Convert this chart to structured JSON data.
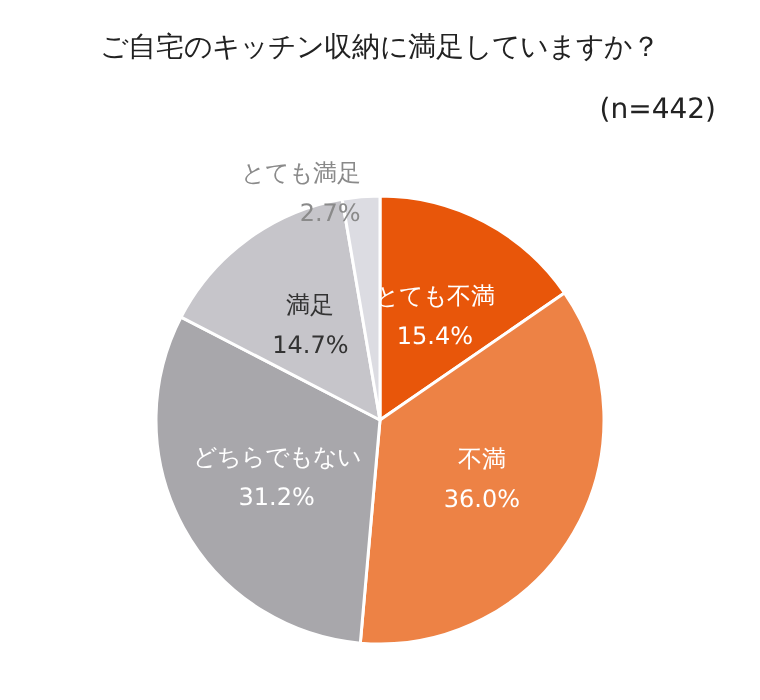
{
  "chart_data": {
    "type": "pie",
    "title": "ご自宅のキッチン収納に満足していますか？",
    "annotations": [
      "(n=442)"
    ],
    "categories": [
      "とても不満",
      "不満",
      "どちらでもない",
      "満足",
      "とても満足"
    ],
    "values": [
      15.4,
      36.0,
      31.2,
      14.7,
      2.7
    ],
    "value_labels": [
      "15.4%",
      "36.0%",
      "31.2%",
      "14.7%",
      "2.7%"
    ],
    "colors": [
      "#e8560a",
      "#ed8245",
      "#a8a7ab",
      "#c6c5ca",
      "#dcdce2"
    ],
    "legend": false
  }
}
